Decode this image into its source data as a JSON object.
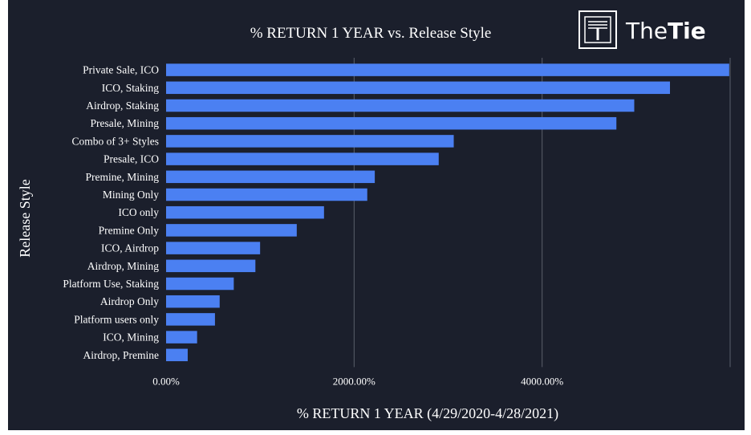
{
  "brand": {
    "prefix": "The",
    "suffix": "Tie",
    "icon": "thetie-logo-icon"
  },
  "colors": {
    "background": "#1b1f2c",
    "bar": "#4b80f2",
    "grid": "#5a5f6b",
    "text": "#ffffff"
  },
  "chart_data": {
    "type": "bar",
    "orientation": "horizontal",
    "title": "% RETURN 1 YEAR vs. Release Style",
    "xlabel": "% RETURN 1 YEAR (4/29/2020-4/28/2021)",
    "ylabel": "Release Style",
    "xlim": [
      0,
      6000
    ],
    "xticks": [
      0,
      2000,
      4000
    ],
    "xtick_labels": [
      "0.00%",
      "2000.00%",
      "4000.00%"
    ],
    "grid": true,
    "categories": [
      "Private Sale, ICO",
      "ICO, Staking",
      "Airdrop, Staking",
      "Presale, Mining",
      "Combo of 3+ Styles",
      "Presale, ICO",
      "Premine, Mining",
      "Mining Only",
      "ICO only",
      "Premine Only",
      "ICO, Airdrop",
      "Airdrop, Mining",
      "Platform Use, Staking",
      "Airdrop Only",
      "Platform users only",
      "ICO, Mining",
      "Airdrop, Premine"
    ],
    "values": [
      5990,
      5360,
      4980,
      4790,
      3060,
      2900,
      2220,
      2140,
      1680,
      1390,
      1000,
      950,
      720,
      570,
      520,
      330,
      230
    ]
  }
}
